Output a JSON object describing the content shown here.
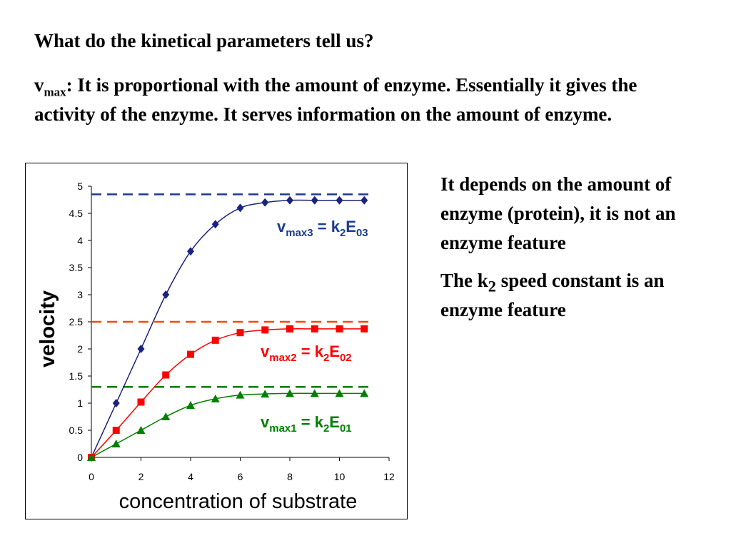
{
  "slide": {
    "title": "What do the kinetical parameters tell us?",
    "vmax_symbol": "v",
    "vmax_sub": "max",
    "vmax_text": ": It is proportional with the amount of enzyme.  Essentially it gives the activity of the enzyme. It serves information on the amount of enzyme.",
    "side_text_1": "It depends on the amount of enzyme (protein), it is not an enzyme feature",
    "side_text_2_pre": "The k",
    "side_text_2_sub": "2",
    "side_text_2_post": " speed constant is an enzyme feature"
  },
  "chart_data": {
    "type": "line",
    "xlabel": "concentration of substrate",
    "ylabel": "velocity",
    "xlim": [
      0,
      12
    ],
    "ylim": [
      0,
      5
    ],
    "x_ticks": [
      "0",
      "2",
      "4",
      "6",
      "8",
      "10",
      "12"
    ],
    "y_ticks": [
      "0",
      "0.5",
      "1",
      "1.5",
      "2",
      "2.5",
      "3",
      "3.5",
      "4",
      "4.5",
      "5"
    ],
    "grid": false,
    "x": [
      0,
      1,
      2,
      3,
      4,
      5,
      6,
      7,
      8,
      9,
      10,
      11
    ],
    "series": [
      {
        "values": [
          0,
          1.0,
          2.0,
          3.0,
          3.8,
          4.3,
          4.6,
          4.7,
          4.74,
          4.74,
          4.74,
          4.74
        ],
        "color": "#1a237e",
        "marker": "diamond",
        "vmax_line": 4.85,
        "label_parts": [
          "v",
          "max3",
          " = k",
          "2",
          "E",
          "03"
        ],
        "label_color": "#1a3c8f"
      },
      {
        "values": [
          0,
          0.5,
          1.02,
          1.52,
          1.9,
          2.16,
          2.3,
          2.35,
          2.37,
          2.37,
          2.37,
          2.37
        ],
        "color": "#ff0000",
        "marker": "square",
        "vmax_line": 2.5,
        "label_parts": [
          "v",
          "max2",
          " = k",
          "2",
          "E",
          "02"
        ],
        "label_color": "#ff0000"
      },
      {
        "values": [
          0,
          0.25,
          0.5,
          0.75,
          0.96,
          1.08,
          1.15,
          1.17,
          1.18,
          1.18,
          1.18,
          1.18
        ],
        "color": "#008000",
        "marker": "triangle",
        "vmax_line": 1.3,
        "label_parts": [
          "v",
          "max1",
          " = k",
          "2",
          "E",
          "01"
        ],
        "label_color": "#008000"
      }
    ]
  }
}
